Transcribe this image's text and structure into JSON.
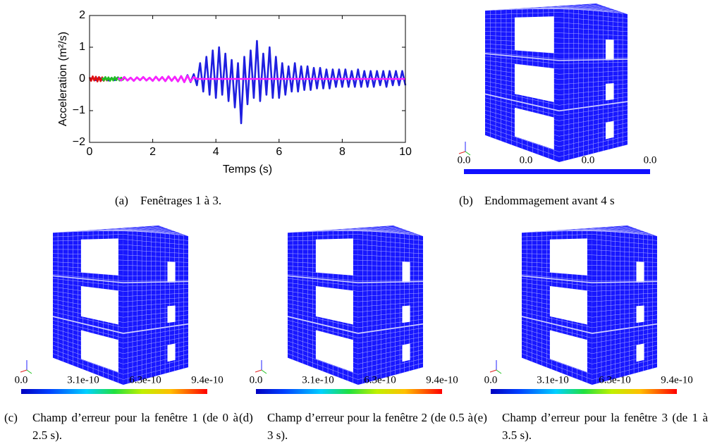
{
  "chart_data": {
    "type": "line",
    "xlabel": "Temps (s)",
    "ylabel": "Acceleration (m²/s)",
    "xlim": [
      0,
      10
    ],
    "xticks": [
      0,
      2,
      4,
      6,
      8,
      10
    ],
    "ylim": [
      -2,
      2
    ],
    "yticks": [
      {
        "value": -2,
        "label": "−2"
      },
      {
        "value": -1,
        "label": "−1"
      },
      0,
      1,
      2
    ],
    "grid": false,
    "series": [
      {
        "color": "#1f1fe0",
        "x": [
          0,
          0.1,
          0.2,
          0.3,
          0.4,
          0.5,
          0.6,
          0.7,
          0.8,
          0.9,
          1,
          1.1,
          1.2,
          1.3,
          1.4,
          1.5,
          1.6,
          1.7,
          1.8,
          1.9,
          2,
          2.1,
          2.2,
          2.3,
          2.4,
          2.5,
          2.6,
          2.7,
          2.8,
          2.9,
          3,
          3.1,
          3.2,
          3.3,
          3.4,
          3.5,
          3.6,
          3.7,
          3.8,
          3.9,
          4,
          4.1,
          4.2,
          4.3,
          4.4,
          4.5,
          4.6,
          4.7,
          4.8,
          4.9,
          5,
          5.1,
          5.2,
          5.3,
          5.4,
          5.5,
          5.6,
          5.7,
          5.8,
          5.9,
          6,
          6.1,
          6.2,
          6.3,
          6.4,
          6.5,
          6.6,
          6.7,
          6.8,
          6.9,
          7,
          7.1,
          7.2,
          7.3,
          7.4,
          7.5,
          7.6,
          7.7,
          7.8,
          7.9,
          8,
          8.1,
          8.2,
          8.3,
          8.4,
          8.5,
          8.6,
          8.7,
          8.8,
          8.9,
          9,
          9.1,
          9.2,
          9.3,
          9.4,
          9.5,
          9.6,
          9.7,
          9.8,
          9.9,
          10
        ],
        "values": [
          0,
          0.03,
          -0.04,
          0.05,
          -0.03,
          0.04,
          -0.05,
          0.03,
          -0.04,
          0.05,
          -0.05,
          0.06,
          -0.05,
          0.04,
          -0.06,
          0.05,
          -0.04,
          0.06,
          -0.05,
          0.04,
          -0.06,
          0.07,
          -0.05,
          0.06,
          -0.07,
          0.08,
          -0.06,
          0.07,
          -0.08,
          0.09,
          -0.1,
          0.12,
          -0.1,
          0.15,
          -0.2,
          0.5,
          -0.4,
          0.7,
          -0.5,
          0.9,
          -0.6,
          1.0,
          -0.5,
          0.8,
          -0.7,
          0.6,
          -0.9,
          0.5,
          -1.4,
          0.7,
          -0.8,
          0.9,
          -0.6,
          1.2,
          -0.7,
          0.8,
          -0.5,
          1.0,
          -0.6,
          0.7,
          -0.6,
          0.5,
          -0.5,
          0.4,
          -0.4,
          0.5,
          -0.4,
          0.4,
          -0.35,
          0.4,
          -0.35,
          0.35,
          -0.3,
          0.35,
          -0.3,
          0.3,
          -0.3,
          0.3,
          -0.25,
          0.3,
          -0.25,
          0.3,
          -0.25,
          0.25,
          -0.25,
          0.3,
          -0.25,
          0.25,
          -0.25,
          0.25,
          -0.25,
          0.25,
          -0.2,
          0.25,
          -0.25,
          0.25,
          -0.2,
          0.25,
          -0.2,
          0.25,
          -0.2
        ]
      },
      {
        "color": "#e01010",
        "x": [
          0,
          0.05,
          0.1,
          0.15,
          0.2,
          0.25,
          0.3,
          0.35,
          0.4,
          0.45,
          0.5,
          0.55,
          0.6
        ],
        "values": [
          0.05,
          -0.06,
          0.08,
          -0.05,
          0.07,
          -0.08,
          0.06,
          -0.07,
          0.05,
          -0.06,
          0.04,
          -0.05,
          0.03
        ]
      },
      {
        "color": "#20c020",
        "x": [
          0.4,
          0.45,
          0.5,
          0.55,
          0.6,
          0.65,
          0.7,
          0.75,
          0.8,
          0.85,
          0.9,
          0.95,
          1,
          1.05,
          1.1
        ],
        "values": [
          0.04,
          -0.05,
          0.06,
          -0.04,
          0.05,
          -0.06,
          0.04,
          -0.05,
          0.06,
          -0.04,
          0.05,
          -0.05,
          0.04,
          -0.03,
          0.03
        ]
      },
      {
        "color": "#ff20ff",
        "x": [
          0.9,
          1,
          1.1,
          1.2,
          1.3,
          1.4,
          1.5,
          1.6,
          1.7,
          1.8,
          1.9,
          2,
          2.1,
          2.2,
          2.3,
          2.4,
          2.5,
          2.6,
          2.7,
          2.8,
          2.9,
          3,
          3.1,
          3.2,
          3.3,
          3.4,
          10
        ],
        "values": [
          0.03,
          -0.05,
          0.06,
          -0.05,
          0.04,
          -0.06,
          0.05,
          -0.04,
          0.06,
          -0.05,
          0.04,
          -0.06,
          0.07,
          -0.05,
          0.06,
          -0.07,
          0.08,
          -0.06,
          0.07,
          -0.08,
          0.09,
          -0.1,
          0.1,
          -0.08,
          0.06,
          0,
          0
        ]
      }
    ]
  },
  "panels": [
    {
      "label": "(a)",
      "caption": "Fenêtrages 1 à 3."
    },
    {
      "label": "(b)",
      "caption": "Endommagement avant 4 s",
      "colorbar_labels": [
        "0.0",
        "0.0",
        "0.0",
        "0.0"
      ]
    },
    {
      "label": "(c)",
      "caption": "Champ d’erreur pour la fenêtre 1 (de 0 à 2.5 s).",
      "colorbar_labels": [
        "0.0",
        "3.1e-10",
        "6.3e-10",
        "9.4e-10"
      ]
    },
    {
      "label": "(d)",
      "caption": "Champ d’erreur pour la fenêtre 2 (de 0.5 à 3 s).",
      "colorbar_labels": [
        "0.0",
        "3.1e-10",
        "6.3e-10",
        "9.4e-10"
      ]
    },
    {
      "label": "(e)",
      "caption": "Champ d’erreur pour la fenêtre 3 (de 1 à 3.5 s).",
      "colorbar_labels": [
        "0.0",
        "3.1e-10",
        "6.3e-10",
        "9.4e-10"
      ]
    }
  ]
}
